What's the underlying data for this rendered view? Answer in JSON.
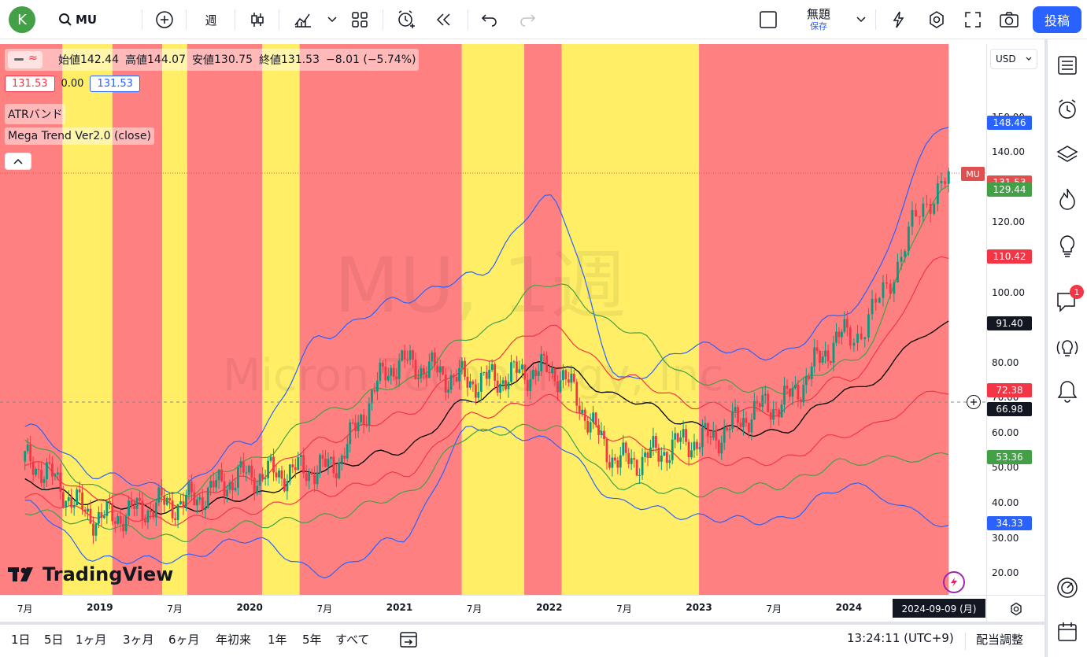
{
  "header": {
    "avatar_letter": "K",
    "symbol": "MU",
    "interval": "週",
    "layout_name": "無題",
    "save_label": "保存",
    "post_label": "投稿"
  },
  "legend": {
    "open_label": "始値",
    "open": "142.44",
    "high_label": "高値",
    "high": "144.07",
    "low_label": "安値",
    "low": "130.75",
    "close_label": "終値",
    "close": "131.53",
    "change": "−8.01 (−5.74%)",
    "sell_price": "131.53",
    "spread": "0.00",
    "buy_price": "131.53",
    "indicator1": "ATRバンド",
    "indicator2": "Mega Trend Ver2.0 (close)"
  },
  "watermark": {
    "symbol_line": "MU, 1週",
    "company_line": "Micron Technology, Inc."
  },
  "logo_text": "TradingView",
  "currency": "USD",
  "price_axis": {
    "ticks": [
      "150.00",
      "140.00",
      "120.00",
      "110.00",
      "100.00",
      "90.00",
      "80.00",
      "70.00",
      "60.00",
      "50.00",
      "40.00",
      "30.00",
      "20.00"
    ],
    "tags": [
      {
        "text": "148.46",
        "color": "#2962ff"
      },
      {
        "text": "131.53",
        "color": "#e04f4f"
      },
      {
        "text": "129.44",
        "color": "#43a047"
      },
      {
        "text": "110.42",
        "color": "#f23645"
      },
      {
        "text": "91.40",
        "color": "#131722"
      },
      {
        "text": "72.38",
        "color": "#f23645"
      },
      {
        "text": "66.98",
        "color": "#131722"
      },
      {
        "text": "53.36",
        "color": "#43a047"
      },
      {
        "text": "34.33",
        "color": "#2962ff"
      }
    ],
    "symbol_tag": "MU"
  },
  "time_axis": {
    "labels": [
      {
        "text": "7月",
        "bold": false
      },
      {
        "text": "2019",
        "bold": true
      },
      {
        "text": "7月",
        "bold": false
      },
      {
        "text": "2020",
        "bold": true
      },
      {
        "text": "7月",
        "bold": false
      },
      {
        "text": "2021",
        "bold": true
      },
      {
        "text": "7月",
        "bold": false
      },
      {
        "text": "2022",
        "bold": true
      },
      {
        "text": "7月",
        "bold": false
      },
      {
        "text": "2023",
        "bold": true
      },
      {
        "text": "7月",
        "bold": false
      },
      {
        "text": "2024",
        "bold": true
      }
    ],
    "cursor_date": "2024-09-09 (月)"
  },
  "bottom_bar": {
    "ranges": [
      "1日",
      "5日",
      "1ヶ月",
      "3ヶ月",
      "6ヶ月",
      "年初来",
      "1年",
      "5年",
      "すべて"
    ],
    "clock": "13:24:11 (UTC+9)",
    "adjust_label": "配当調整"
  },
  "notifications_badge": "1",
  "chart_data": {
    "type": "candlestick",
    "symbol": "MU",
    "interval": "1W",
    "ylim": [
      14,
      171
    ],
    "x": [
      "2018-07",
      "2019-01",
      "2019-07",
      "2020-01",
      "2020-07",
      "2021-01",
      "2021-07",
      "2022-01",
      "2022-07",
      "2023-01",
      "2023-07",
      "2024-01",
      "2024-09"
    ],
    "close_approx": [
      52,
      36,
      40,
      48,
      50,
      80,
      75,
      78,
      52,
      58,
      68,
      88,
      131.53
    ],
    "series": [
      {
        "name": "ATRバンド upper",
        "color": "#2962ff",
        "values": [
          62,
          48,
          44,
          58,
          88,
          98,
          105,
          127,
          75,
          85,
          82,
          95,
          148.46
        ]
      },
      {
        "name": "ATRバンド lower",
        "color": "#2962ff",
        "values": [
          40,
          24,
          24,
          30,
          20,
          30,
          62,
          58,
          40,
          36,
          35,
          45,
          34.33
        ]
      },
      {
        "name": "Mega Trend mid",
        "color": "#000000",
        "values": [
          46,
          40,
          38,
          42,
          50,
          55,
          70,
          80,
          70,
          62,
          60,
          72,
          91.4
        ]
      },
      {
        "name": "band green upper",
        "color": "#43a047",
        "values": [
          58,
          44,
          42,
          52,
          66,
          74,
          88,
          103,
          90,
          75,
          72,
          80,
          129.44
        ]
      },
      {
        "name": "band green lower",
        "color": "#43a047",
        "values": [
          38,
          34,
          30,
          34,
          36,
          42,
          60,
          62,
          45,
          43,
          45,
          52,
          53.36
        ]
      },
      {
        "name": "band red upper",
        "color": "#f23645",
        "values": [
          52,
          42,
          40,
          47,
          58,
          65,
          80,
          90,
          76,
          68,
          66,
          76,
          110.42
        ]
      },
      {
        "name": "band red lower",
        "color": "#f23645",
        "values": [
          42,
          37,
          35,
          38,
          43,
          48,
          65,
          70,
          58,
          52,
          52,
          60,
          72.38
        ]
      }
    ],
    "regime_bands": [
      {
        "from": "2018-05",
        "to": "2018-10",
        "color": "#ff8080"
      },
      {
        "from": "2018-10",
        "to": "2019-02",
        "color": "#ffee66"
      },
      {
        "from": "2019-02",
        "to": "2019-06",
        "color": "#ff8080"
      },
      {
        "from": "2019-06",
        "to": "2019-08",
        "color": "#ffee66"
      },
      {
        "from": "2019-08",
        "to": "2020-02",
        "color": "#ff8080"
      },
      {
        "from": "2020-02",
        "to": "2020-05",
        "color": "#ffee66"
      },
      {
        "from": "2020-05",
        "to": "2021-06",
        "color": "#ff8080"
      },
      {
        "from": "2021-06",
        "to": "2021-11",
        "color": "#ffee66"
      },
      {
        "from": "2021-11",
        "to": "2022-02",
        "color": "#ff8080"
      },
      {
        "from": "2022-02",
        "to": "2023-01",
        "color": "#ffee66"
      },
      {
        "from": "2023-01",
        "to": "2024-09",
        "color": "#ff8080"
      }
    ],
    "last_price": 131.53,
    "crosshair_price": 66.98
  }
}
